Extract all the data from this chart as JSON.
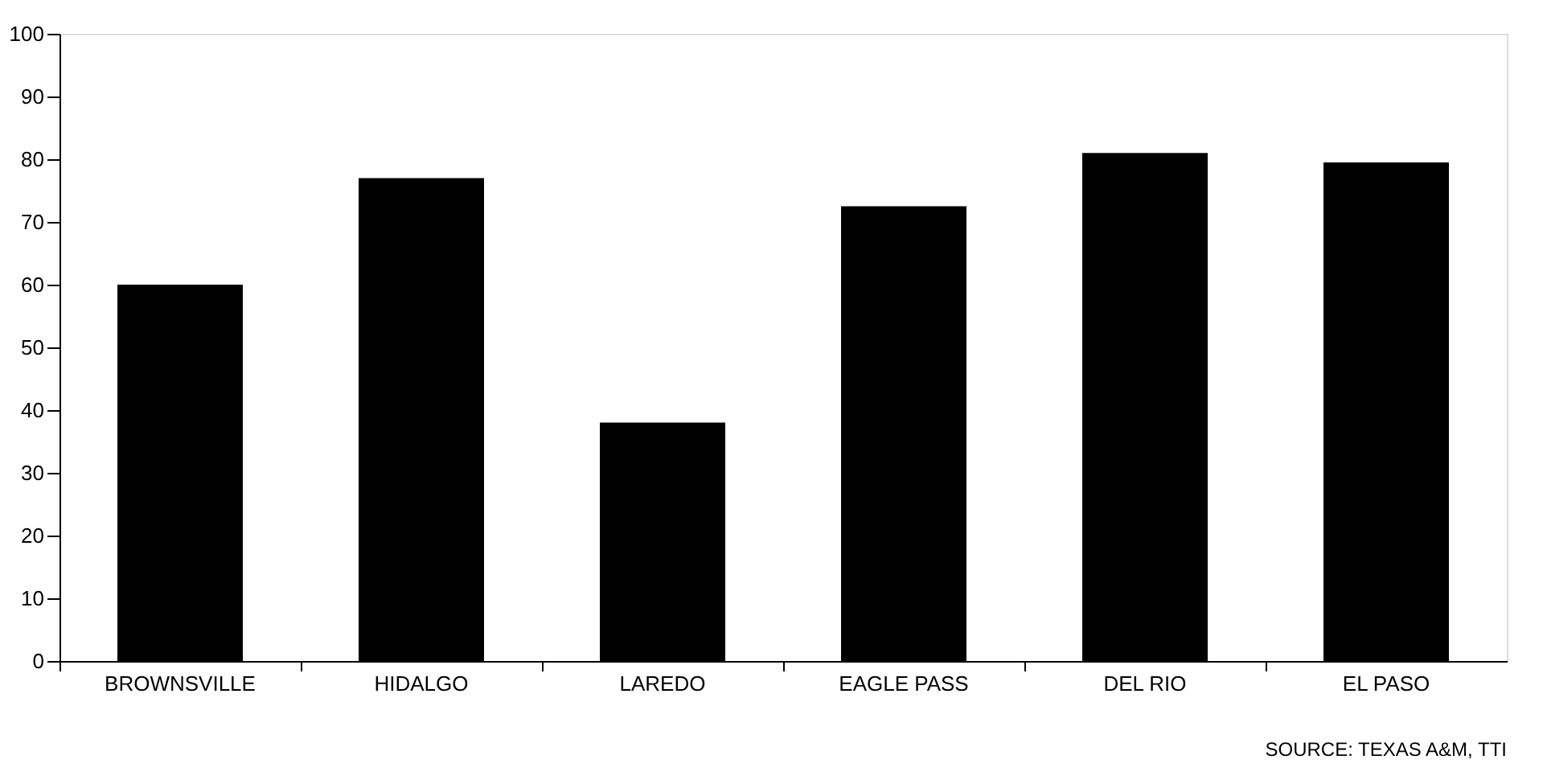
{
  "chart_data": {
    "type": "bar",
    "categories": [
      "BROWNSVILLE",
      "HIDALGO",
      "LAREDO",
      "EAGLE PASS",
      "DEL RIO",
      "EL PASO"
    ],
    "values": [
      60,
      77,
      38,
      72.5,
      81,
      79.5
    ],
    "color": "#000000",
    "ylim": [
      0,
      100
    ],
    "yticks": [
      0,
      10,
      20,
      30,
      40,
      50,
      60,
      70,
      80,
      90,
      100
    ],
    "grid": false,
    "annotations": [
      "SOURCE: TEXAS A&M, TTI"
    ]
  }
}
